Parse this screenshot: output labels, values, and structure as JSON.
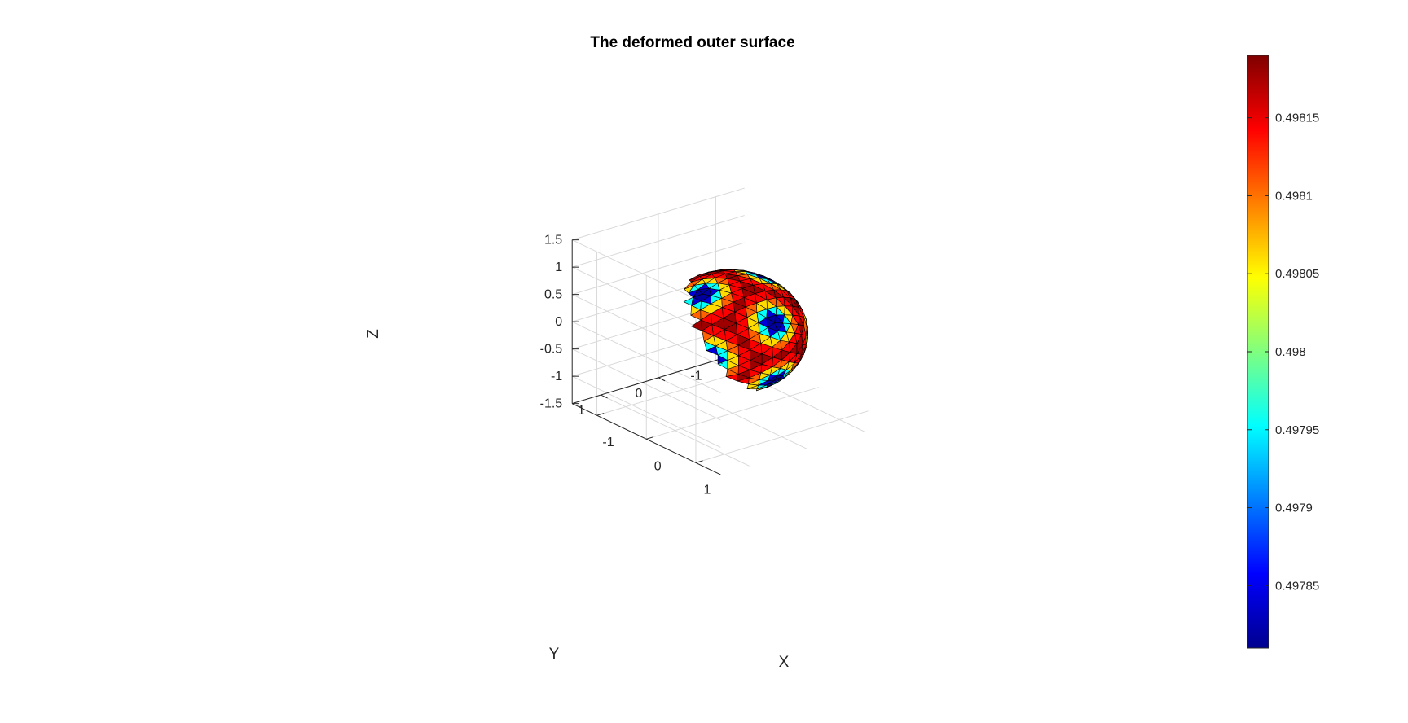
{
  "chart_data": {
    "type": "surface",
    "title": "The deformed outer surface",
    "xlabel": "X",
    "ylabel": "Y",
    "zlabel": "Z",
    "x_ticks": [
      "-1",
      "0",
      "1"
    ],
    "y_ticks": [
      "-1",
      "0",
      "1"
    ],
    "z_ticks": [
      "-1.5",
      "-1",
      "-0.5",
      "0",
      "0.5",
      "1",
      "1.5"
    ],
    "xlim": [
      -1.5,
      1.5
    ],
    "ylim": [
      -1.5,
      1.5
    ],
    "zlim": [
      -1.5,
      1.5
    ],
    "grid": true,
    "surface": "triangulated sphere, radius 1",
    "colormap": "jet",
    "color_range": [
      0.49781,
      0.49819
    ],
    "colorbar_ticks": [
      "0.49785",
      "0.4979",
      "0.49795",
      "0.498",
      "0.49805",
      "0.4981",
      "0.49815"
    ],
    "colorbar_tick_values": [
      0.49785,
      0.4979,
      0.49795,
      0.498,
      0.49805,
      0.4981,
      0.49815
    ],
    "colorbar_location": "right"
  }
}
